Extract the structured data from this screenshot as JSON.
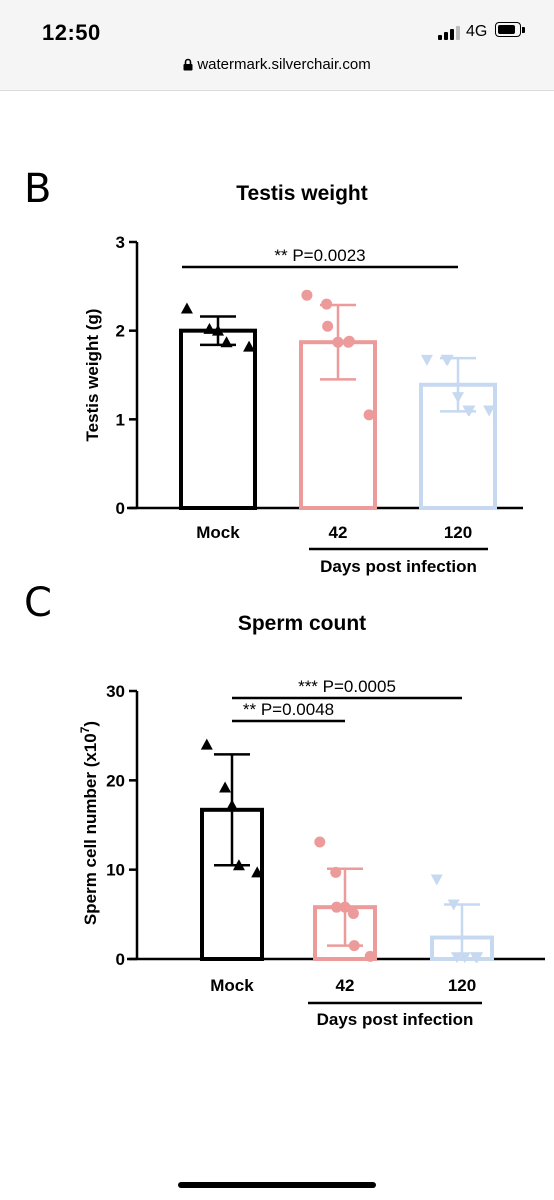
{
  "status_bar": {
    "time": "12:50",
    "network": "4G",
    "battery_level": 0.85
  },
  "browser": {
    "url": "watermark.silverchair.com"
  },
  "panels": [
    {
      "letter": "B",
      "title": "Testis weight"
    },
    {
      "letter": "C",
      "title": "Sperm count"
    }
  ],
  "colors": {
    "mock": "#000000",
    "d42": "#ec9a9a",
    "d120": "#c7d9f1"
  },
  "chart_data": [
    {
      "type": "bar",
      "title": "Testis weight",
      "ylabel": "Testis weight (g)",
      "xlabel": "Days post infection",
      "ylim": [
        0,
        3
      ],
      "yticks": [
        "0",
        "1",
        "2",
        "3"
      ],
      "categories": [
        "Mock",
        "42",
        "120"
      ],
      "values": [
        2.0,
        1.87,
        1.39
      ],
      "sd": [
        0.16,
        0.42,
        0.3
      ],
      "points": [
        [
          2.25,
          2.02,
          2.0,
          1.87,
          1.82
        ],
        [
          2.4,
          2.3,
          2.05,
          1.87,
          1.87,
          1.88,
          1.05
        ],
        [
          1.67,
          1.67,
          1.67,
          1.25,
          1.1,
          1.1,
          1.1
        ]
      ],
      "markers": [
        "triangle-up",
        "circle",
        "triangle-down"
      ],
      "annotations": [
        {
          "text": "** P=0.0023",
          "from": "Mock",
          "to": "120"
        }
      ]
    },
    {
      "type": "bar",
      "title": "Sperm count",
      "ylabel": "Sperm cell number (x10",
      "ylabel_exponent": "7",
      "ylabel_close": ")",
      "xlabel": "Days post infection",
      "ylim": [
        0,
        30
      ],
      "yticks": [
        "0",
        "10",
        "20",
        "30"
      ],
      "categories": [
        "Mock",
        "42",
        "120"
      ],
      "values": [
        16.7,
        5.8,
        2.4
      ],
      "sd": [
        6.2,
        4.3,
        3.7
      ],
      "points": [
        [
          24.0,
          19.2,
          17.2,
          10.5,
          9.7
        ],
        [
          13.1,
          9.7,
          5.8,
          5.8,
          5.1,
          1.5,
          0.3
        ],
        [
          8.9,
          6.1,
          0.2,
          0.2,
          0.2,
          0.2
        ]
      ],
      "markers": [
        "triangle-up",
        "circle",
        "triangle-down"
      ],
      "annotations": [
        {
          "text": "*** P=0.0005",
          "from": "Mock",
          "to": "120"
        },
        {
          "text": "** P=0.0048",
          "from": "Mock",
          "to": "42"
        }
      ]
    }
  ]
}
